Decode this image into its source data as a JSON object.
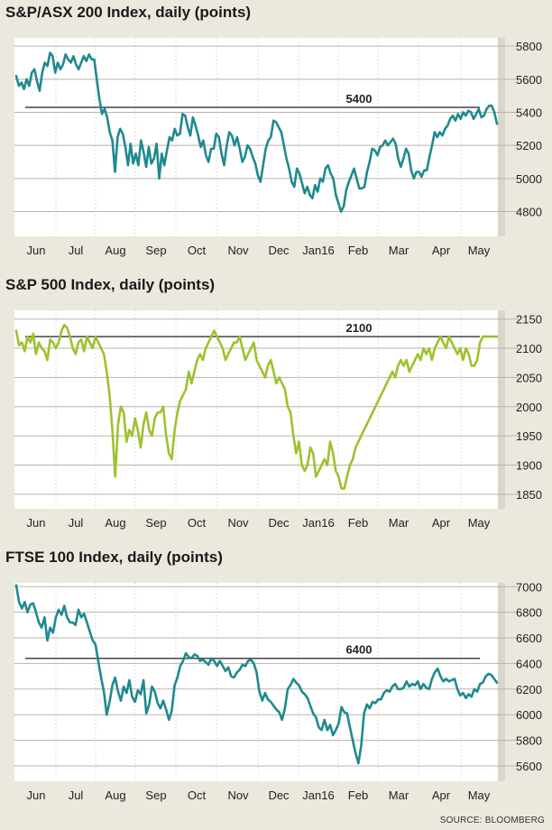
{
  "colors": {
    "teal": "#1f8a8e",
    "green": "#9cc22e",
    "plot_bg": "#ffffff",
    "page_bg": "#ebe8dd",
    "ref_line": "#444444",
    "grid": "#b8b5aa"
  },
  "source": "SOURCE: BLOOMBERG",
  "chart_data": [
    {
      "type": "line",
      "title": "S&P/ASX 200 Index, daily (points)",
      "x_labels": [
        "Jun",
        "Jul",
        "Aug",
        "Sep",
        "Oct",
        "Nov",
        "Dec",
        "Jan16",
        "Feb",
        "Mar",
        "Apr",
        "May"
      ],
      "yticks": [
        4800,
        5000,
        5200,
        5400,
        5600,
        5800
      ],
      "ylim": [
        4650,
        5850
      ],
      "ref_line": {
        "value": 5430,
        "label": "5400"
      },
      "color": "#1f8a8e",
      "values": [
        5620,
        5560,
        5580,
        5540,
        5600,
        5560,
        5640,
        5660,
        5590,
        5530,
        5640,
        5700,
        5680,
        5760,
        5740,
        5640,
        5700,
        5660,
        5690,
        5750,
        5720,
        5700,
        5740,
        5690,
        5660,
        5700,
        5740,
        5710,
        5750,
        5720,
        5720,
        5600,
        5480,
        5390,
        5420,
        5370,
        5280,
        5230,
        5040,
        5250,
        5300,
        5270,
        5190,
        5080,
        5210,
        5090,
        5150,
        5080,
        5230,
        5160,
        5070,
        5190,
        5090,
        5120,
        5210,
        5000,
        5150,
        5080,
        5170,
        5250,
        5230,
        5300,
        5260,
        5270,
        5390,
        5380,
        5310,
        5260,
        5370,
        5320,
        5260,
        5190,
        5230,
        5140,
        5100,
        5180,
        5180,
        5270,
        5250,
        5150,
        5080,
        5200,
        5280,
        5260,
        5200,
        5250,
        5180,
        5100,
        5130,
        5200,
        5180,
        5130,
        5090,
        5020,
        4980,
        5080,
        5180,
        5230,
        5250,
        5350,
        5340,
        5310,
        5280,
        5200,
        5120,
        5060,
        4980,
        4950,
        5060,
        5030,
        4970,
        4910,
        4950,
        4900,
        4880,
        4960,
        4920,
        5000,
        4980,
        5060,
        5080,
        5030,
        5000,
        4900,
        4850,
        4800,
        4830,
        4930,
        4980,
        5020,
        5060,
        5000,
        4940,
        4940,
        4950,
        5040,
        5100,
        5180,
        5170,
        5140,
        5190,
        5200,
        5230,
        5200,
        5220,
        5240,
        5210,
        5120,
        5070,
        5120,
        5180,
        5150,
        5050,
        5000,
        5040,
        5040,
        5010,
        5050,
        5050,
        5130,
        5200,
        5280,
        5250,
        5280,
        5260,
        5300,
        5320,
        5360,
        5380,
        5350,
        5390,
        5360,
        5400,
        5380,
        5410,
        5400,
        5360,
        5390,
        5420,
        5370,
        5380,
        5420,
        5440,
        5440,
        5400,
        5330
      ]
    },
    {
      "type": "line",
      "title": "S&P 500 Index, daily (points)",
      "x_labels": [
        "Jun",
        "Jul",
        "Aug",
        "Sep",
        "Oct",
        "Nov",
        "Dec",
        "Jan16",
        "Feb",
        "Mar",
        "Apr",
        "May"
      ],
      "yticks": [
        1850,
        1900,
        1950,
        2000,
        2050,
        2100,
        2150
      ],
      "ylim": [
        1825,
        2165
      ],
      "ref_line": {
        "value": 2120,
        "label": "2100"
      },
      "color": "#9cc22e",
      "values": [
        2130,
        2105,
        2110,
        2095,
        2120,
        2110,
        2125,
        2090,
        2110,
        2100,
        2095,
        2080,
        2115,
        2110,
        2100,
        2110,
        2130,
        2140,
        2135,
        2120,
        2100,
        2090,
        2110,
        2115,
        2095,
        2120,
        2110,
        2100,
        2120,
        2110,
        2100,
        2090,
        2060,
        2020,
        1960,
        1880,
        1970,
        2000,
        1990,
        1940,
        1960,
        1950,
        1980,
        1960,
        1930,
        1970,
        1990,
        1960,
        1950,
        1980,
        1990,
        1990,
        2000,
        1950,
        1920,
        1910,
        1960,
        1990,
        2010,
        2020,
        2030,
        2060,
        2040,
        2060,
        2080,
        2090,
        2080,
        2100,
        2110,
        2120,
        2130,
        2120,
        2110,
        2100,
        2080,
        2090,
        2100,
        2110,
        2110,
        2120,
        2100,
        2080,
        2090,
        2100,
        2110,
        2080,
        2070,
        2060,
        2050,
        2070,
        2080,
        2060,
        2040,
        2050,
        2040,
        2030,
        2000,
        1990,
        1950,
        1920,
        1940,
        1900,
        1890,
        1900,
        1930,
        1920,
        1880,
        1890,
        1900,
        1910,
        1900,
        1940,
        1920,
        1890,
        1880,
        1860,
        1860,
        1880,
        1900,
        1910,
        1930,
        1940,
        1950,
        1960,
        1970,
        1980,
        1990,
        2000,
        2010,
        2020,
        2030,
        2040,
        2050,
        2060,
        2050,
        2070,
        2080,
        2070,
        2080,
        2060,
        2070,
        2080,
        2090,
        2080,
        2100,
        2090,
        2100,
        2080,
        2100,
        2110,
        2120,
        2110,
        2100,
        2120,
        2110,
        2100,
        2090,
        2100,
        2080,
        2100,
        2090,
        2070,
        2070,
        2080,
        2110,
        2120,
        2120,
        2120,
        2120,
        2120,
        2120
      ]
    },
    {
      "type": "line",
      "title": "FTSE 100 Index, daily (points)",
      "x_labels": [
        "Jun",
        "Jul",
        "Aug",
        "Sep",
        "Oct",
        "Nov",
        "Dec",
        "Jan16",
        "Feb",
        "Mar",
        "Apr",
        "May"
      ],
      "yticks": [
        5600,
        5800,
        6000,
        6200,
        6400,
        6600,
        6800,
        7000
      ],
      "ylim": [
        5480,
        7030
      ],
      "ref_line": {
        "value": 6440,
        "label": "6400"
      },
      "color": "#1f8a8e",
      "values": [
        7010,
        6880,
        6830,
        6880,
        6800,
        6860,
        6870,
        6800,
        6720,
        6680,
        6760,
        6580,
        6680,
        6640,
        6760,
        6820,
        6780,
        6850,
        6760,
        6720,
        6720,
        6700,
        6820,
        6760,
        6790,
        6720,
        6650,
        6580,
        6550,
        6420,
        6290,
        6180,
        6000,
        6100,
        6230,
        6290,
        6180,
        6110,
        6220,
        6170,
        6270,
        6140,
        6100,
        6190,
        6160,
        6270,
        6010,
        6080,
        6220,
        6180,
        6090,
        6050,
        6110,
        6040,
        5960,
        6030,
        6230,
        6290,
        6380,
        6420,
        6480,
        6450,
        6440,
        6470,
        6460,
        6420,
        6430,
        6410,
        6390,
        6440,
        6420,
        6380,
        6420,
        6380,
        6340,
        6370,
        6300,
        6290,
        6330,
        6350,
        6390,
        6380,
        6420,
        6430,
        6400,
        6330,
        6180,
        6110,
        6170,
        6120,
        6100,
        6070,
        6040,
        6020,
        5960,
        6050,
        6200,
        6230,
        6280,
        6250,
        6230,
        6180,
        6160,
        6130,
        6070,
        6010,
        5980,
        5900,
        5880,
        5960,
        5880,
        5920,
        5840,
        5880,
        5930,
        6060,
        6020,
        6010,
        5900,
        5800,
        5700,
        5620,
        5760,
        6010,
        6080,
        6050,
        6100,
        6090,
        6120,
        6120,
        6170,
        6190,
        6180,
        6220,
        6240,
        6200,
        6200,
        6210,
        6260,
        6220,
        6240,
        6230,
        6260,
        6200,
        6240,
        6210,
        6200,
        6280,
        6330,
        6360,
        6300,
        6260,
        6280,
        6260,
        6270,
        6280,
        6200,
        6150,
        6170,
        6130,
        6160,
        6140,
        6200,
        6180,
        6240,
        6250,
        6300,
        6320,
        6310,
        6280,
        6250
      ]
    }
  ]
}
